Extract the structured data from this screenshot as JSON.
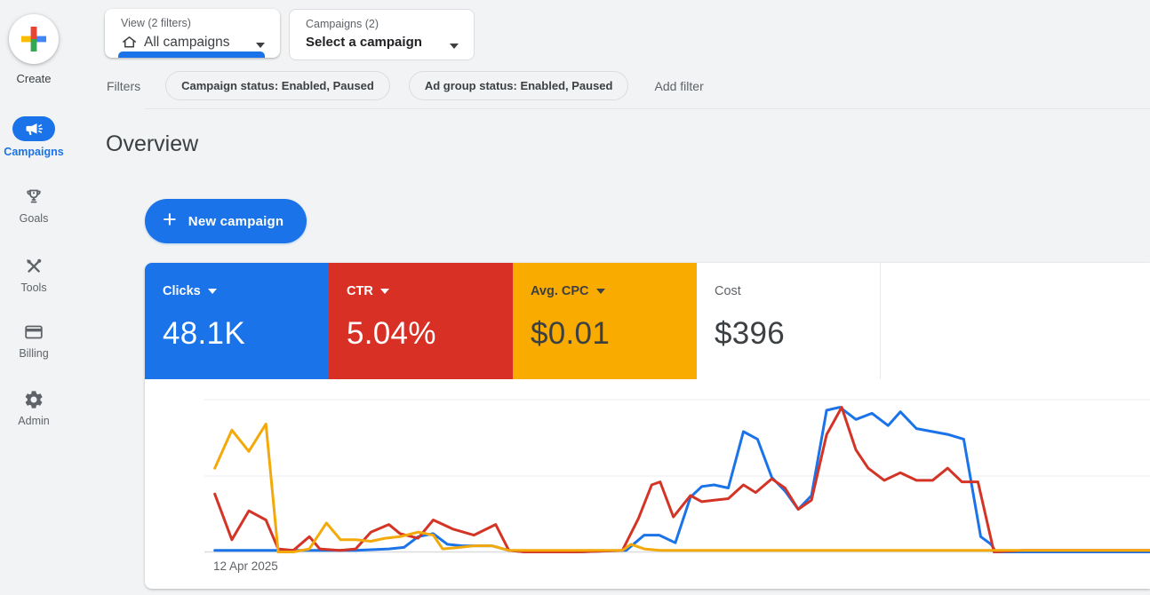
{
  "page": {
    "background": "#f1f3f4",
    "accent": "#1a73e8"
  },
  "sidebar": {
    "create": {
      "label": "Create"
    },
    "items": [
      {
        "label": "Campaigns",
        "icon": "megaphone-icon",
        "active": true
      },
      {
        "label": "Goals",
        "icon": "trophy-icon",
        "active": false
      },
      {
        "label": "Tools",
        "icon": "wrench-hammer-icon",
        "active": false
      },
      {
        "label": "Billing",
        "icon": "credit-card-icon",
        "active": false
      },
      {
        "label": "Admin",
        "icon": "gear-icon",
        "active": false
      }
    ]
  },
  "header": {
    "view_selector": {
      "label": "View (2 filters)",
      "value": "All campaigns",
      "icon": "home-icon"
    },
    "campaign_selector": {
      "label": "Campaigns (2)",
      "value": "Select a campaign"
    }
  },
  "filters": {
    "label": "Filters",
    "chips": [
      "Campaign status: Enabled, Paused",
      "Ad group status: Enabled, Paused"
    ],
    "add_label": "Add filter"
  },
  "main": {
    "title": "Overview",
    "new_campaign_label": "New campaign",
    "plus_glyph": "+"
  },
  "scorecards": [
    {
      "label": "Clicks",
      "value": "48.1K",
      "bg": "#1a73e8",
      "text_color": "#ffffff",
      "has_dropdown": true
    },
    {
      "label": "CTR",
      "value": "5.04%",
      "bg": "#d93025",
      "text_color": "#ffffff",
      "has_dropdown": true
    },
    {
      "label": "Avg. CPC",
      "value": "$0.01",
      "bg": "#f9ab00",
      "text_color": "#3c4043",
      "has_dropdown": true
    },
    {
      "label": "Cost",
      "value": "$396",
      "bg": "#ffffff",
      "text_color": "#3c4043",
      "has_dropdown": false
    }
  ],
  "chart_data": {
    "type": "line",
    "x_axis": {
      "start_label": "12 Apr 2025",
      "unit": "fraction of visible time range"
    },
    "y_axis": {
      "unit": "fraction of plot height (no numeric labels shown)",
      "gridlines": 3
    },
    "series": [
      {
        "name": "Clicks",
        "color": "#1a73e8",
        "points": [
          [
            0.011,
            0.01
          ],
          [
            0.094,
            0.01
          ],
          [
            0.16,
            0.01
          ],
          [
            0.195,
            0.02
          ],
          [
            0.211,
            0.03
          ],
          [
            0.226,
            0.1
          ],
          [
            0.242,
            0.12
          ],
          [
            0.257,
            0.05
          ],
          [
            0.273,
            0.04
          ],
          [
            0.304,
            0.04
          ],
          [
            0.322,
            0.01
          ],
          [
            0.339,
            0
          ],
          [
            0.395,
            0
          ],
          [
            0.446,
            0.01
          ],
          [
            0.465,
            0.11
          ],
          [
            0.481,
            0.11
          ],
          [
            0.498,
            0.06
          ],
          [
            0.514,
            0.36
          ],
          [
            0.526,
            0.43
          ],
          [
            0.539,
            0.44
          ],
          [
            0.554,
            0.42
          ],
          [
            0.57,
            0.79
          ],
          [
            0.585,
            0.74
          ],
          [
            0.6,
            0.49
          ],
          [
            0.614,
            0.4
          ],
          [
            0.628,
            0.28
          ],
          [
            0.642,
            0.37
          ],
          [
            0.658,
            0.93
          ],
          [
            0.672,
            0.95
          ],
          [
            0.689,
            0.87
          ],
          [
            0.706,
            0.91
          ],
          [
            0.723,
            0.83
          ],
          [
            0.736,
            0.92
          ],
          [
            0.753,
            0.81
          ],
          [
            0.77,
            0.79
          ],
          [
            0.787,
            0.77
          ],
          [
            0.803,
            0.74
          ],
          [
            0.821,
            0.1
          ],
          [
            0.832,
            0.05
          ],
          [
            0.837,
            0
          ],
          [
            0.865,
            0
          ],
          [
            1,
            0
          ]
        ]
      },
      {
        "name": "CTR",
        "color": "#d33426",
        "points": [
          [
            0.011,
            0.38
          ],
          [
            0.029,
            0.08
          ],
          [
            0.047,
            0.27
          ],
          [
            0.065,
            0.21
          ],
          [
            0.078,
            0.02
          ],
          [
            0.094,
            0.01
          ],
          [
            0.111,
            0.1
          ],
          [
            0.122,
            0.02
          ],
          [
            0.144,
            0.01
          ],
          [
            0.16,
            0.02
          ],
          [
            0.176,
            0.13
          ],
          [
            0.195,
            0.18
          ],
          [
            0.207,
            0.12
          ],
          [
            0.226,
            0.09
          ],
          [
            0.242,
            0.21
          ],
          [
            0.263,
            0.15
          ],
          [
            0.285,
            0.11
          ],
          [
            0.308,
            0.18
          ],
          [
            0.322,
            0.01
          ],
          [
            0.339,
            0
          ],
          [
            0.395,
            0
          ],
          [
            0.442,
            0.01
          ],
          [
            0.459,
            0.22
          ],
          [
            0.473,
            0.44
          ],
          [
            0.482,
            0.46
          ],
          [
            0.496,
            0.23
          ],
          [
            0.514,
            0.37
          ],
          [
            0.526,
            0.33
          ],
          [
            0.539,
            0.34
          ],
          [
            0.554,
            0.35
          ],
          [
            0.57,
            0.44
          ],
          [
            0.583,
            0.39
          ],
          [
            0.6,
            0.48
          ],
          [
            0.614,
            0.42
          ],
          [
            0.628,
            0.28
          ],
          [
            0.642,
            0.34
          ],
          [
            0.658,
            0.77
          ],
          [
            0.674,
            0.95
          ],
          [
            0.689,
            0.67
          ],
          [
            0.702,
            0.55
          ],
          [
            0.719,
            0.47
          ],
          [
            0.736,
            0.52
          ],
          [
            0.753,
            0.47
          ],
          [
            0.77,
            0.47
          ],
          [
            0.786,
            0.55
          ],
          [
            0.801,
            0.46
          ],
          [
            0.818,
            0.46
          ],
          [
            0.835,
            0
          ],
          [
            0.865,
            0.01
          ],
          [
            1,
            0.01
          ]
        ]
      },
      {
        "name": "Avg. CPC",
        "color": "#f4a90a",
        "points": [
          [
            0.011,
            0.55
          ],
          [
            0.029,
            0.8
          ],
          [
            0.047,
            0.66
          ],
          [
            0.065,
            0.84
          ],
          [
            0.078,
            0
          ],
          [
            0.094,
            0
          ],
          [
            0.111,
            0.02
          ],
          [
            0.129,
            0.19
          ],
          [
            0.144,
            0.08
          ],
          [
            0.16,
            0.08
          ],
          [
            0.176,
            0.07
          ],
          [
            0.191,
            0.09
          ],
          [
            0.207,
            0.1
          ],
          [
            0.226,
            0.13
          ],
          [
            0.242,
            0.11
          ],
          [
            0.252,
            0.02
          ],
          [
            0.27,
            0.03
          ],
          [
            0.285,
            0.04
          ],
          [
            0.304,
            0.04
          ],
          [
            0.322,
            0.01
          ],
          [
            0.339,
            0.01
          ],
          [
            0.442,
            0.01
          ],
          [
            0.451,
            0.05
          ],
          [
            0.465,
            0.02
          ],
          [
            0.482,
            0.01
          ],
          [
            0.63,
            0.01
          ],
          [
            0.724,
            0.01
          ],
          [
            0.818,
            0.01
          ],
          [
            1,
            0.01
          ]
        ]
      }
    ]
  }
}
